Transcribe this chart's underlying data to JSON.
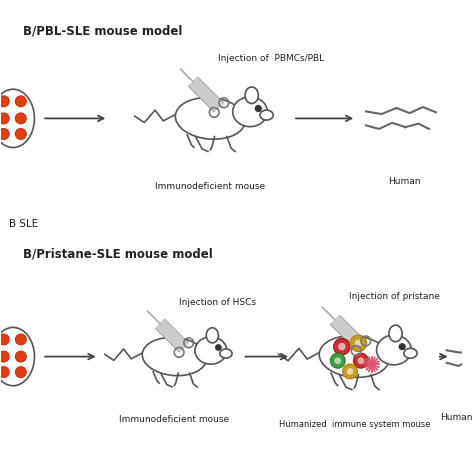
{
  "bg_color": "#ffffff",
  "top_section_title": "B/PBL-SLE mouse model",
  "bottom_section_title": "B/Pristane-SLE mouse model",
  "mid_label": "B SLE",
  "top_injection_label": "Injection of  PBMCs/PBL",
  "top_mouse1_label": "Immunodeficient mouse",
  "top_mouse2_label": "Human",
  "bottom_injection1_label": "Injection of HSCs",
  "bottom_injection2_label": "Injection of pristane",
  "bottom_mouse1_label": "Immunodeficient mouse",
  "bottom_mouse2_label": "Humanized  immune system mouse",
  "bottom_mouse3_label": "Human",
  "text_color": "#222222",
  "ec_color": "#666666",
  "arrow_color": "#444444",
  "dot_color": "#e04010",
  "dot_color2": "#cc3010",
  "circle_colors": [
    "#cc3030",
    "#c8a020",
    "#40a040",
    "#cc3030",
    "#c8a020"
  ],
  "circle_ec": [
    "#aa1010",
    "#aa8010",
    "#208020",
    "#aa1010",
    "#aa8010"
  ],
  "star_color": "#e05070"
}
